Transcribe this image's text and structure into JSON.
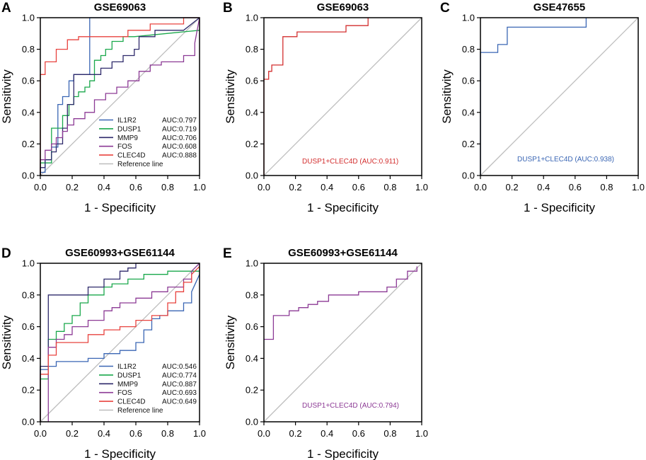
{
  "colors": {
    "IL1R2": "#3a66b4",
    "DUSP1": "#1aa84b",
    "MMP9": "#2e2a6b",
    "FOS": "#8c3a95",
    "CLEC4D": "#e8433f",
    "reference": "#bdbdbd",
    "combined_B": "#d32f2f",
    "combined_C": "#3a66b4",
    "combined_E": "#8c3a95"
  },
  "chart_data": [
    {
      "type": "line",
      "panel": "A",
      "title": "GSE69063",
      "xlabel": "1 - Specificity",
      "ylabel": "Sensitivity",
      "xlim": [
        0,
        1
      ],
      "ylim": [
        0,
        1
      ],
      "ticks": [
        "0.0",
        "0.2",
        "0.4",
        "0.6",
        "0.8",
        "1.0"
      ],
      "series": [
        {
          "key": "IL1R2",
          "name": "IL1R2",
          "auc": "AUC:0.797",
          "color_key": "IL1R2",
          "x": [
            0,
            0,
            0.03,
            0.03,
            0.07,
            0.07,
            0.11,
            0.11,
            0.14,
            0.14,
            0.18,
            0.18,
            0.21,
            0.21,
            0.31,
            0.31,
            0.34,
            0.34,
            1.0
          ],
          "y": [
            0,
            0.02,
            0.02,
            0.1,
            0.1,
            0.18,
            0.18,
            0.45,
            0.45,
            0.5,
            0.5,
            0.6,
            0.6,
            0.64,
            0.64,
            1.0,
            1.0,
            1.0,
            1.0
          ]
        },
        {
          "key": "DUSP1",
          "name": "DUSP1",
          "auc": "AUC:0.719",
          "color_key": "DUSP1",
          "x": [
            0,
            0,
            0.07,
            0.07,
            0.14,
            0.14,
            0.18,
            0.18,
            0.21,
            0.21,
            0.24,
            0.24,
            0.28,
            0.28,
            0.31,
            0.31,
            0.34,
            0.34,
            0.38,
            0.38,
            0.41,
            0.41,
            0.45,
            0.45,
            0.52,
            0.52,
            0.59,
            0.59,
            1.0
          ],
          "y": [
            0,
            0.08,
            0.08,
            0.3,
            0.3,
            0.38,
            0.38,
            0.45,
            0.45,
            0.5,
            0.5,
            0.53,
            0.53,
            0.56,
            0.56,
            0.6,
            0.6,
            0.73,
            0.73,
            0.76,
            0.76,
            0.8,
            0.8,
            0.85,
            0.85,
            0.88,
            0.88,
            0.88,
            0.92
          ]
        },
        {
          "key": "MMP9",
          "name": "MMP9",
          "auc": "AUC:0.706",
          "color_key": "MMP9",
          "x": [
            0,
            0,
            0.03,
            0.03,
            0.07,
            0.07,
            0.1,
            0.1,
            0.14,
            0.14,
            0.17,
            0.17,
            0.21,
            0.21,
            0.31,
            0.31,
            0.38,
            0.38,
            0.45,
            0.45,
            0.52,
            0.52,
            0.59,
            0.59,
            0.62,
            0.62,
            0.72,
            0.72,
            0.9,
            0.9,
            1.0
          ],
          "y": [
            0,
            0.05,
            0.05,
            0.1,
            0.1,
            0.15,
            0.15,
            0.2,
            0.2,
            0.3,
            0.3,
            0.45,
            0.45,
            0.64,
            0.64,
            0.64,
            0.64,
            0.68,
            0.68,
            0.72,
            0.72,
            0.76,
            0.76,
            0.8,
            0.8,
            0.88,
            0.88,
            0.92,
            0.92,
            0.92,
            1.0
          ]
        },
        {
          "key": "FOS",
          "name": "FOS",
          "auc": "AUC:0.608",
          "color_key": "FOS",
          "x": [
            0,
            0,
            0.03,
            0.03,
            0.07,
            0.07,
            0.1,
            0.1,
            0.14,
            0.14,
            0.17,
            0.17,
            0.21,
            0.21,
            0.28,
            0.28,
            0.34,
            0.34,
            0.41,
            0.41,
            0.48,
            0.48,
            0.55,
            0.55,
            0.62,
            0.62,
            0.69,
            0.69,
            0.76,
            0.76,
            0.9,
            0.9,
            0.97,
            0.97,
            1.0
          ],
          "y": [
            0,
            0.1,
            0.1,
            0.16,
            0.16,
            0.2,
            0.2,
            0.24,
            0.24,
            0.28,
            0.28,
            0.32,
            0.32,
            0.36,
            0.36,
            0.4,
            0.4,
            0.48,
            0.48,
            0.52,
            0.52,
            0.56,
            0.56,
            0.6,
            0.6,
            0.66,
            0.66,
            0.7,
            0.7,
            0.72,
            0.72,
            0.76,
            0.76,
            0.84,
            1.0
          ]
        },
        {
          "key": "CLEC4D",
          "name": "CLEC4D",
          "auc": "AUC:0.888",
          "color_key": "CLEC4D",
          "x": [
            0,
            0,
            0.03,
            0.03,
            0.1,
            0.1,
            0.17,
            0.17,
            0.24,
            0.24,
            0.34,
            0.34,
            0.55,
            0.55,
            0.69,
            0.69,
            0.9,
            0.9,
            1.0
          ],
          "y": [
            0,
            0.64,
            0.64,
            0.72,
            0.72,
            0.8,
            0.8,
            0.86,
            0.86,
            0.88,
            0.88,
            0.88,
            0.88,
            0.92,
            0.92,
            0.96,
            0.96,
            1.0,
            1.0
          ]
        }
      ],
      "reference_label": "Reference line",
      "legend": "bottom-right"
    },
    {
      "type": "line",
      "panel": "B",
      "title": "GSE69063",
      "xlabel": "1 - Specificity",
      "ylabel": "Sensitivity",
      "xlim": [
        0,
        1
      ],
      "ylim": [
        0,
        1
      ],
      "ticks": [
        "0.0",
        "0.2",
        "0.4",
        "0.6",
        "0.8",
        "1.0"
      ],
      "series": [
        {
          "key": "combined",
          "name": "DUSP1+CLEC4D",
          "auc": "(AUC:0.911)",
          "color_key": "combined_B",
          "x": [
            0,
            0,
            0.03,
            0.03,
            0.05,
            0.05,
            0.07,
            0.07,
            0.12,
            0.12,
            0.21,
            0.21,
            0.52,
            0.52,
            0.66,
            0.66
          ],
          "y": [
            0,
            0.61,
            0.61,
            0.66,
            0.66,
            0.7,
            0.7,
            0.7,
            0.7,
            0.88,
            0.88,
            0.91,
            0.91,
            0.95,
            0.95,
            1.0
          ]
        }
      ],
      "annotation": "DUSP1+CLEC4D   (AUC:0.911)"
    },
    {
      "type": "line",
      "panel": "C",
      "title": "GSE47655",
      "xlabel": "1 - Specificity",
      "ylabel": "Sensitivity",
      "xlim": [
        0,
        1
      ],
      "ylim": [
        0,
        1
      ],
      "ticks": [
        "0.0",
        "0.2",
        "0.4",
        "0.6",
        "0.8",
        "1.0"
      ],
      "series": [
        {
          "key": "combined",
          "name": "DUSP1+CLEC4D",
          "auc": "(AUC:0.938)",
          "color_key": "combined_C",
          "x": [
            0,
            0,
            0.11,
            0.11,
            0.17,
            0.17,
            0.67,
            0.67
          ],
          "y": [
            0,
            0.78,
            0.78,
            0.83,
            0.83,
            0.94,
            0.94,
            1.0
          ]
        }
      ],
      "annotation": "DUSP1+CLEC4D   (AUC:0.938)"
    },
    {
      "type": "line",
      "panel": "D",
      "title": "GSE60993+GSE61144",
      "xlabel": "1 - Specificity",
      "ylabel": "Sensitivity",
      "xlim": [
        0,
        1
      ],
      "ylim": [
        0,
        1
      ],
      "ticks": [
        "0.0",
        "0.2",
        "0.4",
        "0.6",
        "0.8",
        "1.0"
      ],
      "series": [
        {
          "key": "IL1R2",
          "name": "IL1R2",
          "auc": "AUC:0.546",
          "color_key": "IL1R2",
          "x": [
            0,
            0,
            0.05,
            0.05,
            0.1,
            0.1,
            0.3,
            0.3,
            0.4,
            0.4,
            0.5,
            0.5,
            0.6,
            0.6,
            0.65,
            0.65,
            0.7,
            0.7,
            0.75,
            0.75,
            0.8,
            0.8,
            0.9,
            0.9,
            0.95,
            0.95,
            1.0
          ],
          "y": [
            0,
            0.33,
            0.33,
            0.35,
            0.35,
            0.38,
            0.38,
            0.4,
            0.4,
            0.43,
            0.43,
            0.45,
            0.45,
            0.5,
            0.5,
            0.58,
            0.58,
            0.65,
            0.65,
            0.67,
            0.67,
            0.7,
            0.7,
            0.75,
            0.75,
            0.82,
            0.93
          ]
        },
        {
          "key": "DUSP1",
          "name": "DUSP1",
          "auc": "AUC:0.774",
          "color_key": "DUSP1",
          "x": [
            0,
            0,
            0.05,
            0.05,
            0.1,
            0.1,
            0.15,
            0.15,
            0.2,
            0.2,
            0.25,
            0.25,
            0.3,
            0.3,
            0.4,
            0.4,
            0.45,
            0.45,
            0.55,
            0.55,
            0.65,
            0.65,
            0.8,
            0.8,
            1.0
          ],
          "y": [
            0,
            0.27,
            0.27,
            0.52,
            0.52,
            0.57,
            0.57,
            0.62,
            0.62,
            0.67,
            0.67,
            0.75,
            0.75,
            0.8,
            0.8,
            0.85,
            0.85,
            0.87,
            0.87,
            0.9,
            0.9,
            0.93,
            0.93,
            0.95,
            0.95
          ]
        },
        {
          "key": "MMP9",
          "name": "MMP9",
          "auc": "AUC:0.887",
          "color_key": "MMP9",
          "x": [
            0,
            0,
            0.05,
            0.05,
            0.2,
            0.2,
            0.3,
            0.3,
            0.4,
            0.4,
            0.5,
            0.5,
            0.55,
            0.55,
            0.6,
            0.6,
            0.65,
            0.65,
            1.0
          ],
          "y": [
            0,
            0.35,
            0.35,
            0.8,
            0.8,
            0.8,
            0.8,
            0.85,
            0.85,
            0.9,
            0.9,
            0.95,
            0.95,
            0.97,
            0.97,
            1.0,
            1.0,
            1.0,
            1.0
          ]
        },
        {
          "key": "FOS",
          "name": "FOS",
          "auc": "AUC:0.693",
          "color_key": "FOS",
          "x": [
            0.05,
            0.05,
            0.1,
            0.1,
            0.15,
            0.15,
            0.2,
            0.2,
            0.3,
            0.3,
            0.4,
            0.4,
            0.45,
            0.45,
            0.5,
            0.5,
            0.6,
            0.6,
            0.7,
            0.7,
            0.8,
            0.8,
            0.9,
            0.9,
            0.95,
            0.95,
            1.0
          ],
          "y": [
            0,
            0.47,
            0.47,
            0.52,
            0.52,
            0.55,
            0.55,
            0.6,
            0.6,
            0.64,
            0.64,
            0.7,
            0.7,
            0.72,
            0.72,
            0.75,
            0.75,
            0.78,
            0.78,
            0.82,
            0.82,
            0.85,
            0.85,
            0.9,
            0.9,
            0.95,
            1.0
          ]
        },
        {
          "key": "CLEC4D",
          "name": "CLEC4D",
          "auc": "AUC:0.649",
          "color_key": "CLEC4D",
          "x": [
            0,
            0,
            0.05,
            0.05,
            0.1,
            0.1,
            0.2,
            0.2,
            0.3,
            0.3,
            0.4,
            0.4,
            0.5,
            0.5,
            0.6,
            0.6,
            0.7,
            0.7,
            0.8,
            0.8,
            0.85,
            0.85,
            0.9,
            0.9,
            0.95,
            0.95,
            1.0
          ],
          "y": [
            0,
            0.3,
            0.3,
            0.42,
            0.42,
            0.5,
            0.5,
            0.5,
            0.5,
            0.55,
            0.55,
            0.58,
            0.58,
            0.6,
            0.6,
            0.64,
            0.64,
            0.67,
            0.67,
            0.75,
            0.75,
            0.82,
            0.82,
            0.88,
            0.88,
            0.93,
            0.98
          ]
        }
      ],
      "reference_label": "Reference line",
      "legend": "bottom-right"
    },
    {
      "type": "line",
      "panel": "E",
      "title": "GSE60993+GSE61144",
      "xlabel": "1 - Specificity",
      "ylabel": "Sensitivity",
      "xlim": [
        0,
        1
      ],
      "ylim": [
        0,
        1
      ],
      "ticks": [
        "0.0",
        "0.2",
        "0.4",
        "0.6",
        "0.8",
        "1.0"
      ],
      "series": [
        {
          "key": "combined",
          "name": "DUSP1+CLEC4D",
          "auc": "(AUC:0.794)",
          "color_key": "combined_E",
          "x": [
            0,
            0,
            0.06,
            0.06,
            0.16,
            0.16,
            0.22,
            0.22,
            0.28,
            0.28,
            0.34,
            0.34,
            0.41,
            0.41,
            0.53,
            0.53,
            0.6,
            0.6,
            0.72,
            0.72,
            0.78,
            0.78,
            0.84,
            0.84,
            0.91,
            0.91,
            0.97,
            0.97
          ],
          "y": [
            0.52,
            0.52,
            0.52,
            0.67,
            0.67,
            0.7,
            0.7,
            0.72,
            0.72,
            0.74,
            0.74,
            0.76,
            0.76,
            0.8,
            0.8,
            0.8,
            0.8,
            0.82,
            0.82,
            0.82,
            0.82,
            0.85,
            0.85,
            0.9,
            0.9,
            0.95,
            0.95,
            0.98
          ]
        }
      ],
      "annotation": "DUSP1+CLEC4D   (AUC:0.794)"
    }
  ]
}
